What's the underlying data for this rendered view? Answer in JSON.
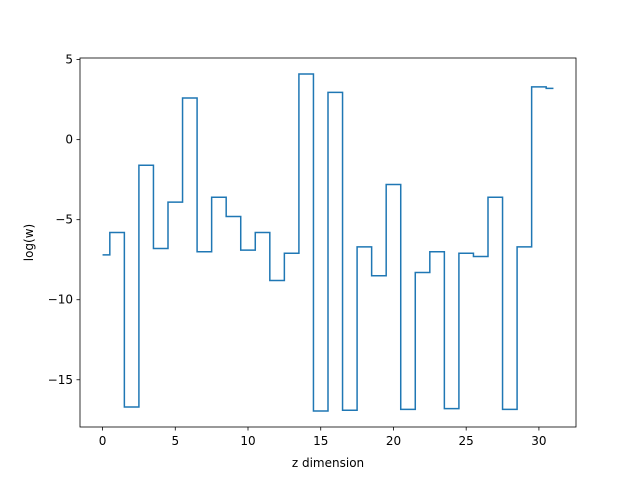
{
  "chart_data": {
    "type": "line",
    "drawstyle": "steps-mid",
    "title": "",
    "xlabel": "z dimension",
    "ylabel": "log(w)",
    "xlim": [
      -1.55,
      32.55
    ],
    "ylim": [
      -17.95,
      5.1
    ],
    "xticks": [
      0,
      5,
      10,
      15,
      20,
      25,
      30
    ],
    "yticks": [
      -15,
      -10,
      -5,
      0,
      5
    ],
    "xtick_labels": [
      "0",
      "5",
      "10",
      "15",
      "20",
      "25",
      "30"
    ],
    "ytick_labels": [
      "−15",
      "−10",
      "−5",
      "0",
      "5"
    ],
    "grid": false,
    "legend": false,
    "series": [
      {
        "color": "#1f77b4",
        "x": [
          0,
          1,
          2,
          3,
          4,
          5,
          6,
          7,
          8,
          9,
          10,
          11,
          12,
          13,
          14,
          15,
          16,
          17,
          18,
          19,
          20,
          21,
          22,
          23,
          24,
          25,
          26,
          27,
          28,
          29,
          30,
          31
        ],
        "y": [
          -7.2,
          -5.8,
          -16.7,
          -1.6,
          -6.8,
          -3.9,
          2.6,
          -7.0,
          -3.6,
          -4.8,
          -6.9,
          -5.8,
          -8.8,
          -7.1,
          4.1,
          -16.95,
          2.95,
          -16.9,
          -6.7,
          -8.5,
          -2.8,
          -16.85,
          -8.3,
          -7.0,
          -16.8,
          -7.1,
          -7.3,
          -3.6,
          -16.85,
          -6.7,
          3.3,
          3.2
        ]
      }
    ]
  }
}
